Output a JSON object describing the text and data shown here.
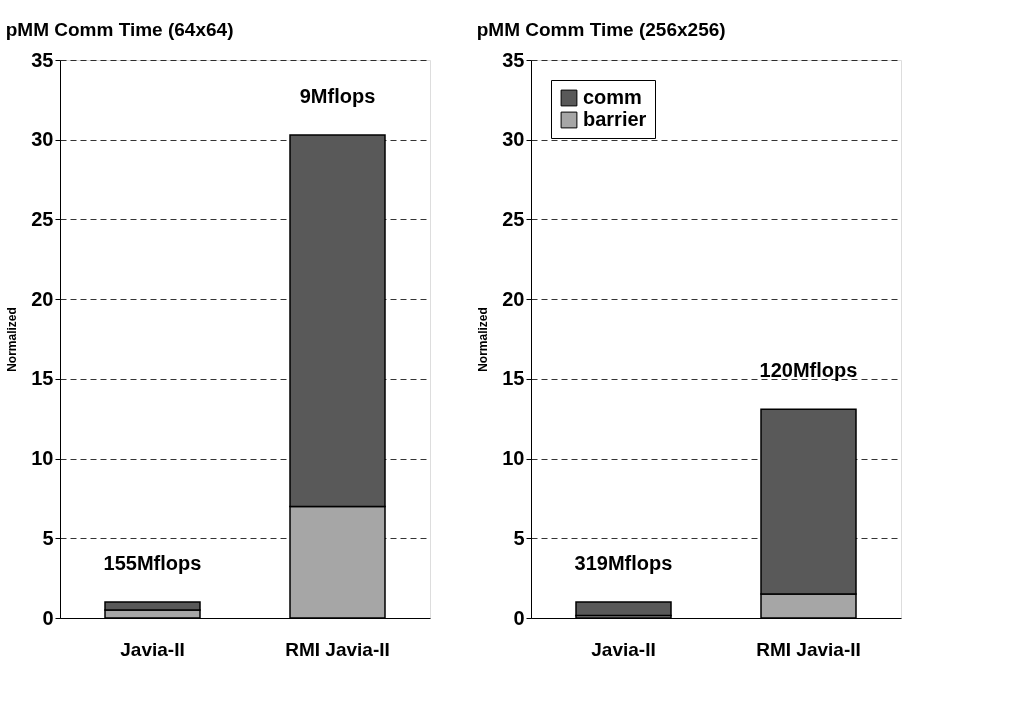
{
  "chart_data": [
    {
      "type": "bar",
      "title": "pMM Comm Time (64x64)",
      "ylabel": "Normalized",
      "categories": [
        "Javia-II",
        "RMI Javia-II"
      ],
      "stacked": true,
      "series": [
        {
          "color": "#a6a6a6",
          "values": [
            0.5,
            7
          ]
        },
        {
          "color": "#595959",
          "values": [
            0.5,
            23.3
          ]
        }
      ],
      "ylim": [
        0,
        35
      ],
      "yticks": [
        0,
        5,
        10,
        15,
        20,
        25,
        30,
        35
      ],
      "grid": "y",
      "annotations": [
        "155Mflops",
        "9Mflops"
      ]
    },
    {
      "type": "bar",
      "title": "pMM Comm Time (256x256)",
      "ylabel": "Normalized",
      "categories": [
        "Javia-II",
        "RMI Javia-II"
      ],
      "stacked": true,
      "series": [
        {
          "name": "barrier",
          "color": "#a6a6a6",
          "values": [
            0.15,
            1.5
          ]
        },
        {
          "name": "comm",
          "color": "#595959",
          "values": [
            0.85,
            11.6
          ]
        }
      ],
      "ylim": [
        0,
        35
      ],
      "yticks": [
        0,
        5,
        10,
        15,
        20,
        25,
        30,
        35
      ],
      "grid": "y",
      "legend": "top left",
      "annotations": [
        "319Mflops",
        "120Mflops"
      ]
    }
  ]
}
